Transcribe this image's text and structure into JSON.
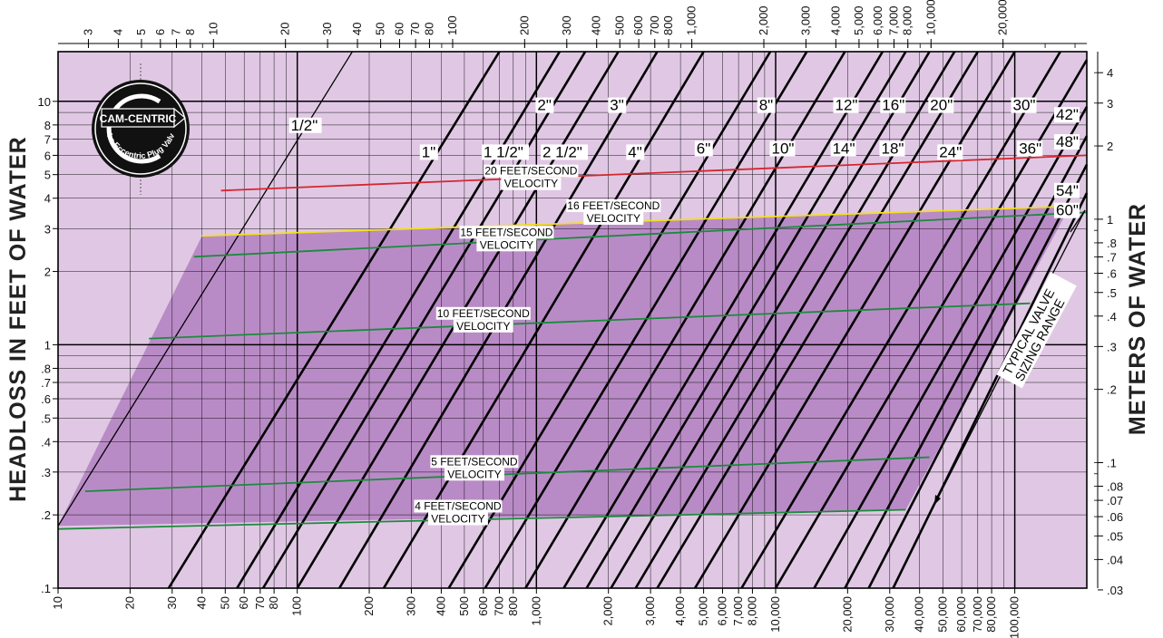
{
  "chart_data": {
    "type": "line",
    "title": "",
    "ylabel": "HEADLOSS IN FEET OF WATER",
    "y2label": "METERS OF WATER",
    "scale": "log-log",
    "xlim": [
      10,
      200000
    ],
    "x2lim": [
      2.24,
      44800
    ],
    "ylim": [
      0.1,
      16
    ],
    "y2lim": [
      0.0305,
      4.88
    ],
    "colors": {
      "background": "#e0c8e4",
      "region": "#b98bc6",
      "red": "#d6262e",
      "yellow": "#f2e01c",
      "green": "#1c8a3c"
    },
    "x_ticks": [
      {
        "v": 10,
        "t": "10"
      },
      {
        "v": 20,
        "t": "20"
      },
      {
        "v": 30,
        "t": "30"
      },
      {
        "v": 40,
        "t": "40"
      },
      {
        "v": 50,
        "t": "50"
      },
      {
        "v": 60,
        "t": "60"
      },
      {
        "v": 70,
        "t": "70"
      },
      {
        "v": 80,
        "t": "80"
      },
      {
        "v": 100,
        "t": "100"
      },
      {
        "v": 200,
        "t": "200"
      },
      {
        "v": 300,
        "t": "300"
      },
      {
        "v": 400,
        "t": "400"
      },
      {
        "v": 500,
        "t": "500"
      },
      {
        "v": 600,
        "t": "600"
      },
      {
        "v": 700,
        "t": "700"
      },
      {
        "v": 800,
        "t": "800"
      },
      {
        "v": 1000,
        "t": "1,000"
      },
      {
        "v": 2000,
        "t": "2,000"
      },
      {
        "v": 3000,
        "t": "3,000"
      },
      {
        "v": 4000,
        "t": "4,000"
      },
      {
        "v": 5000,
        "t": "5,000"
      },
      {
        "v": 6000,
        "t": "6,000"
      },
      {
        "v": 7000,
        "t": "7,000"
      },
      {
        "v": 8000,
        "t": "8,000"
      },
      {
        "v": 10000,
        "t": "10,000"
      },
      {
        "v": 20000,
        "t": "20,000"
      },
      {
        "v": 30000,
        "t": "30,000"
      },
      {
        "v": 40000,
        "t": "40,000"
      },
      {
        "v": 50000,
        "t": "50,000"
      },
      {
        "v": 60000,
        "t": "60,000"
      },
      {
        "v": 70000,
        "t": "70,000"
      },
      {
        "v": 80000,
        "t": "80,000"
      },
      {
        "v": 100000,
        "t": "100,000"
      }
    ],
    "x2_ticks": [
      {
        "v": 3,
        "t": "3"
      },
      {
        "v": 4,
        "t": "4"
      },
      {
        "v": 5,
        "t": "5"
      },
      {
        "v": 6,
        "t": "6"
      },
      {
        "v": 7,
        "t": "7"
      },
      {
        "v": 8,
        "t": "8"
      },
      {
        "v": 10,
        "t": "10"
      },
      {
        "v": 20,
        "t": "20"
      },
      {
        "v": 30,
        "t": "30"
      },
      {
        "v": 40,
        "t": "40"
      },
      {
        "v": 50,
        "t": "50"
      },
      {
        "v": 60,
        "t": "60"
      },
      {
        "v": 70,
        "t": "70"
      },
      {
        "v": 80,
        "t": "80"
      },
      {
        "v": 100,
        "t": "100"
      },
      {
        "v": 200,
        "t": "200"
      },
      {
        "v": 300,
        "t": "300"
      },
      {
        "v": 400,
        "t": "400"
      },
      {
        "v": 500,
        "t": "500"
      },
      {
        "v": 600,
        "t": "600"
      },
      {
        "v": 700,
        "t": "700"
      },
      {
        "v": 800,
        "t": "800"
      },
      {
        "v": 1000,
        "t": "1,000"
      },
      {
        "v": 2000,
        "t": "2,000"
      },
      {
        "v": 3000,
        "t": "3,000"
      },
      {
        "v": 4000,
        "t": "4,000"
      },
      {
        "v": 5000,
        "t": "5,000"
      },
      {
        "v": 6000,
        "t": "6,000"
      },
      {
        "v": 7000,
        "t": "7,000"
      },
      {
        "v": 8000,
        "t": "8,000"
      },
      {
        "v": 10000,
        "t": "10,000"
      },
      {
        "v": 20000,
        "t": "20,000"
      }
    ],
    "y_ticks": [
      {
        "v": 0.1,
        "t": ".1"
      },
      {
        "v": 0.2,
        "t": ".2"
      },
      {
        "v": 0.3,
        "t": ".3"
      },
      {
        "v": 0.4,
        "t": ".4"
      },
      {
        "v": 0.5,
        "t": ".5"
      },
      {
        "v": 0.6,
        "t": ".6"
      },
      {
        "v": 0.7,
        "t": ".7"
      },
      {
        "v": 0.8,
        "t": ".8"
      },
      {
        "v": 1,
        "t": "1"
      },
      {
        "v": 2,
        "t": "2"
      },
      {
        "v": 3,
        "t": "3"
      },
      {
        "v": 4,
        "t": "4"
      },
      {
        "v": 5,
        "t": "5"
      },
      {
        "v": 6,
        "t": "6"
      },
      {
        "v": 7,
        "t": "7"
      },
      {
        "v": 8,
        "t": "8"
      },
      {
        "v": 10,
        "t": "10"
      }
    ],
    "y2_ticks": [
      {
        "v": 0.03,
        "t": ".03"
      },
      {
        "v": 0.04,
        "t": ".04"
      },
      {
        "v": 0.05,
        "t": ".05"
      },
      {
        "v": 0.06,
        "t": ".06"
      },
      {
        "v": 0.07,
        "t": ".07"
      },
      {
        "v": 0.08,
        "t": ".08"
      },
      {
        "v": 0.1,
        "t": ".1"
      },
      {
        "v": 0.2,
        "t": ".2"
      },
      {
        "v": 0.3,
        "t": ".3"
      },
      {
        "v": 0.4,
        "t": ".4"
      },
      {
        "v": 0.5,
        "t": ".5"
      },
      {
        "v": 0.6,
        "t": ".6"
      },
      {
        "v": 0.7,
        "t": ".7"
      },
      {
        "v": 0.8,
        "t": ".8"
      },
      {
        "v": 1,
        "t": "1"
      },
      {
        "v": 2,
        "t": "2"
      },
      {
        "v": 3,
        "t": "3"
      },
      {
        "v": 4,
        "t": "4"
      }
    ],
    "typical_range_polygon": [
      [
        10,
        0.18
      ],
      [
        40,
        2.8
      ],
      [
        170000,
        3.7
      ],
      [
        35000,
        0.21
      ]
    ],
    "size_lines": [
      {
        "name": "1/2\"",
        "points": [
          [
            10,
            0.18
          ],
          [
            170,
            16
          ]
        ]
      },
      {
        "name": "1\"",
        "points": [
          [
            29,
            0.1
          ],
          [
            700,
            16
          ]
        ]
      },
      {
        "name": "1 1/2\"",
        "points": [
          [
            56,
            0.1
          ],
          [
            1250,
            16
          ]
        ]
      },
      {
        "name": "2\"",
        "points": [
          [
            72,
            0.1
          ],
          [
            1600,
            16
          ]
        ]
      },
      {
        "name": "2 1/2\"",
        "points": [
          [
            100,
            0.1
          ],
          [
            2200,
            16
          ]
        ]
      },
      {
        "name": "3\"",
        "points": [
          [
            150,
            0.1
          ],
          [
            3200,
            16
          ]
        ]
      },
      {
        "name": "4\"",
        "points": [
          [
            230,
            0.1
          ],
          [
            5000,
            16
          ]
        ]
      },
      {
        "name": "6\"",
        "points": [
          [
            430,
            0.1
          ],
          [
            9500,
            16
          ]
        ]
      },
      {
        "name": "8\"",
        "points": [
          [
            610,
            0.1
          ],
          [
            13500,
            16
          ]
        ]
      },
      {
        "name": "10\"",
        "points": [
          [
            900,
            0.1
          ],
          [
            19500,
            16
          ]
        ]
      },
      {
        "name": "12\"",
        "points": [
          [
            1300,
            0.1
          ],
          [
            28000,
            16
          ]
        ]
      },
      {
        "name": "14\"",
        "points": [
          [
            1620,
            0.1
          ],
          [
            35000,
            16
          ]
        ]
      },
      {
        "name": "16\"",
        "points": [
          [
            2050,
            0.1
          ],
          [
            44000,
            16
          ]
        ]
      },
      {
        "name": "18\"",
        "points": [
          [
            2600,
            0.1
          ],
          [
            56000,
            16
          ]
        ]
      },
      {
        "name": "20\"",
        "points": [
          [
            3200,
            0.1
          ],
          [
            70000,
            16
          ]
        ]
      },
      {
        "name": "24\"",
        "points": [
          [
            4600,
            0.1
          ],
          [
            100000,
            16
          ]
        ]
      },
      {
        "name": "30\"",
        "points": [
          [
            7200,
            0.1
          ],
          [
            155000,
            16
          ]
        ]
      },
      {
        "name": "36\"",
        "points": [
          [
            10000,
            0.1
          ],
          [
            200000,
            14.8
          ]
        ]
      },
      {
        "name": "42\"",
        "points": [
          [
            14500,
            0.1
          ],
          [
            200000,
            9.5
          ]
        ]
      },
      {
        "name": "48\"",
        "points": [
          [
            19500,
            0.1
          ],
          [
            200000,
            7.2
          ]
        ]
      },
      {
        "name": "54\"",
        "points": [
          [
            24500,
            0.1
          ],
          [
            200000,
            5.5
          ]
        ]
      },
      {
        "name": "60\"",
        "points": [
          [
            31000,
            0.1
          ],
          [
            200000,
            4.2
          ]
        ]
      }
    ],
    "velocity_lines": [
      {
        "name": "20 FEET/SECOND",
        "color": "red",
        "points": [
          [
            48,
            4.3
          ],
          [
            200000,
            6.0
          ]
        ]
      },
      {
        "name": "16 FEET/SECOND",
        "color": "yellow",
        "points": [
          [
            40,
            2.8
          ],
          [
            170000,
            3.7
          ]
        ]
      },
      {
        "name": "15 FEET/SECOND",
        "color": "green",
        "points": [
          [
            37,
            2.3
          ],
          [
            200000,
            3.5
          ]
        ]
      },
      {
        "name": "10 FEET/SECOND",
        "color": "green",
        "points": [
          [
            24,
            1.06
          ],
          [
            116000,
            1.48
          ]
        ]
      },
      {
        "name": "5 FEET/SECOND",
        "color": "green",
        "points": [
          [
            13,
            0.25
          ],
          [
            44000,
            0.345
          ]
        ]
      },
      {
        "name": "4 FEET/SECOND",
        "color": "green",
        "points": [
          [
            10,
            0.175
          ],
          [
            35000,
            0.21
          ]
        ]
      }
    ],
    "annotations": {
      "velocity_word": "VELOCITY",
      "range_line1": "TYPICAL VALVE",
      "range_line2": "SIZING RANGE",
      "logo_brand": "CAM-CENTRIC",
      "logo_tagline": "The Eccentric Plug Valve"
    }
  }
}
